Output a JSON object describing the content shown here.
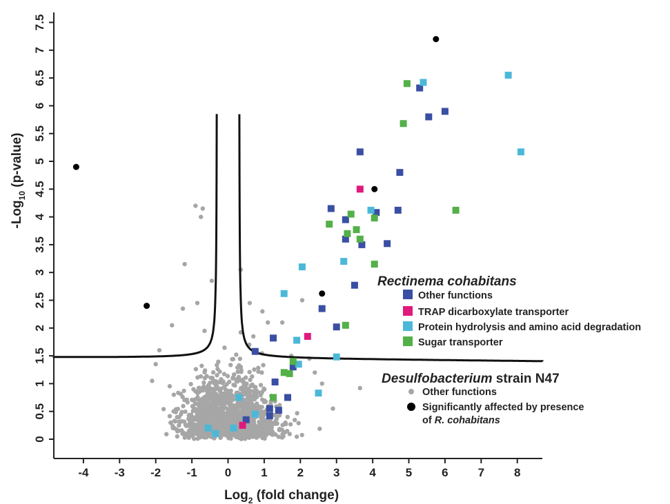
{
  "chart_data": {
    "type": "scatter",
    "xlabel_main": "Log",
    "xlabel_sub": "2",
    "xlabel_rest": " (fold change)",
    "ylabel_main": "-Log",
    "ylabel_sub": "10",
    "ylabel_rest": " (p-value)",
    "xlim": [
      -4.9,
      8.7
    ],
    "ylim": [
      -0.35,
      7.5
    ],
    "x_ticks": [
      -4,
      -3,
      -2,
      -1,
      0,
      1,
      2,
      3,
      4,
      5,
      6,
      7,
      8
    ],
    "y_ticks": [
      0,
      0.5,
      1,
      1.5,
      2,
      2.5,
      3,
      3.5,
      4,
      4.5,
      5,
      5.5,
      6,
      6.5,
      7,
      7.5
    ],
    "grid": false,
    "legend_position": "right",
    "threshold_curve": {
      "s0": 0.3,
      "c": 0.055,
      "y_asymptote": 1.45
    },
    "legend": {
      "group1_title": "Rectinema cohabitans",
      "group1_items": [
        {
          "label": "Other functions",
          "color": "#3a4fa3"
        },
        {
          "label": "TRAP dicarboxylate transporter",
          "color": "#e0197d"
        },
        {
          "label": "Protein hydrolysis and amino acid degradation",
          "color": "#4cb8d8"
        },
        {
          "label": "Sugar transporter",
          "color": "#54b048"
        }
      ],
      "group2_title_italic": "Desulfobacterium",
      "group2_title_rest": " strain N47",
      "group2_items": [
        {
          "label": "Other functions",
          "color": "#a6a6a6"
        },
        {
          "label_line1": "Significantly affected by presence",
          "label_line2_prefix": "of ",
          "label_line2_italic": "R. cohabitans",
          "color": "#000000"
        }
      ]
    },
    "series": [
      {
        "name": "Other functions",
        "group": "Rectinema cohabitans",
        "color": "#3a4fa3",
        "marker": "square",
        "points": [
          [
            5.3,
            6.32
          ],
          [
            5.55,
            5.8
          ],
          [
            6.0,
            5.9
          ],
          [
            3.65,
            5.17
          ],
          [
            4.75,
            4.8
          ],
          [
            2.85,
            4.15
          ],
          [
            3.25,
            3.95
          ],
          [
            4.1,
            4.08
          ],
          [
            4.7,
            4.12
          ],
          [
            3.25,
            3.6
          ],
          [
            3.7,
            3.5
          ],
          [
            4.4,
            3.52
          ],
          [
            3.5,
            2.77
          ],
          [
            2.6,
            2.35
          ],
          [
            3.0,
            2.02
          ],
          [
            1.25,
            1.82
          ],
          [
            0.75,
            1.58
          ],
          [
            1.8,
            1.3
          ],
          [
            1.3,
            1.03
          ],
          [
            1.65,
            0.75
          ],
          [
            1.15,
            0.55
          ],
          [
            1.4,
            0.52
          ],
          [
            1.15,
            0.42
          ],
          [
            0.5,
            0.35
          ]
        ]
      },
      {
        "name": "TRAP dicarboxylate transporter",
        "group": "Rectinema cohabitans",
        "color": "#e0197d",
        "marker": "square",
        "points": [
          [
            3.65,
            4.5
          ],
          [
            2.2,
            1.85
          ],
          [
            0.4,
            0.25
          ]
        ]
      },
      {
        "name": "Protein hydrolysis and amino acid degradation",
        "group": "Rectinema cohabitans",
        "color": "#4cb8d8",
        "marker": "square",
        "points": [
          [
            7.75,
            6.55
          ],
          [
            5.4,
            6.42
          ],
          [
            8.1,
            5.17
          ],
          [
            3.95,
            4.12
          ],
          [
            3.2,
            3.2
          ],
          [
            2.05,
            3.1
          ],
          [
            1.55,
            2.62
          ],
          [
            1.9,
            1.78
          ],
          [
            3.0,
            1.48
          ],
          [
            1.95,
            1.35
          ],
          [
            2.5,
            0.83
          ],
          [
            0.3,
            0.75
          ],
          [
            0.75,
            0.45
          ],
          [
            -0.55,
            0.2
          ],
          [
            0.15,
            0.2
          ],
          [
            -0.35,
            0.1
          ]
        ]
      },
      {
        "name": "Sugar transporter",
        "group": "Rectinema cohabitans",
        "color": "#54b048",
        "marker": "square",
        "points": [
          [
            4.95,
            6.4
          ],
          [
            4.85,
            5.68
          ],
          [
            6.3,
            4.12
          ],
          [
            3.4,
            4.05
          ],
          [
            4.05,
            3.98
          ],
          [
            2.8,
            3.87
          ],
          [
            3.55,
            3.77
          ],
          [
            3.3,
            3.7
          ],
          [
            3.65,
            3.6
          ],
          [
            4.05,
            3.15
          ],
          [
            3.25,
            2.05
          ],
          [
            1.8,
            1.4
          ],
          [
            1.55,
            1.2
          ],
          [
            1.7,
            1.18
          ],
          [
            1.25,
            0.75
          ]
        ]
      },
      {
        "name": "Significantly affected by presence of R. cohabitans",
        "group": "Desulfobacterium strain N47",
        "color": "#000000",
        "marker": "circle",
        "points": [
          [
            5.75,
            7.2
          ],
          [
            -4.2,
            4.9
          ],
          [
            4.05,
            4.5
          ],
          [
            2.6,
            2.62
          ],
          [
            -2.25,
            2.4
          ]
        ]
      }
    ]
  }
}
